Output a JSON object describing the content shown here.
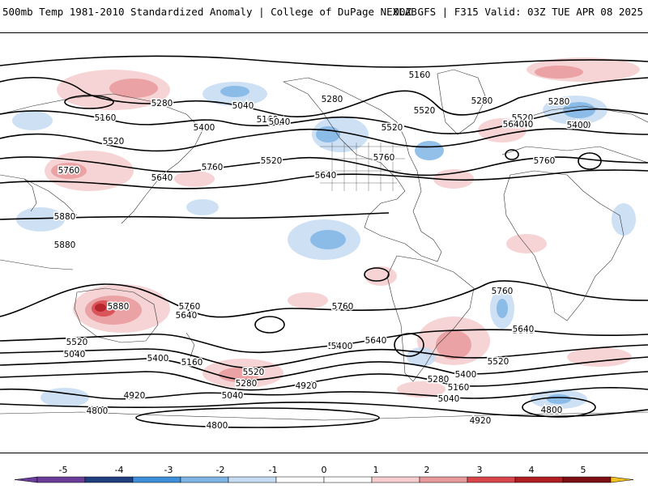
{
  "header": {
    "title_left": "500mb Temp 1981-2010 Standardized Anomaly | College of DuPage NEXLAB",
    "title_right": "00Z GFS | F315 Valid: 03Z TUE APR 08 2025"
  },
  "colors": {
    "neg5": "#6a3d9a",
    "neg4": "#1f3f7f",
    "neg3": "#3c8fd8",
    "neg2": "#7fb5e5",
    "neg1": "#c5dcf2",
    "zero": "#ffffff",
    "pos1": "#f5cdce",
    "pos2": "#e8999b",
    "pos3": "#d8464c",
    "pos4": "#b01e24",
    "pos5": "#7d0f14",
    "over": "#f0c020"
  },
  "colorbar": {
    "ticks": [
      "-5",
      "-4",
      "-3",
      "-2",
      "-1",
      "0",
      "1",
      "2",
      "3",
      "4",
      "5"
    ]
  },
  "contours": {
    "labels": [
      {
        "text": "5160"
      },
      {
        "text": "5160"
      },
      {
        "text": "5160"
      },
      {
        "text": "5160"
      },
      {
        "text": "5280"
      },
      {
        "text": "5280"
      },
      {
        "text": "5280"
      },
      {
        "text": "5280"
      },
      {
        "text": "5040"
      },
      {
        "text": "5040"
      },
      {
        "text": "5400"
      },
      {
        "text": "5400"
      },
      {
        "text": "5400"
      },
      {
        "text": "5400"
      },
      {
        "text": "5520"
      },
      {
        "text": "5520"
      },
      {
        "text": "5520"
      },
      {
        "text": "5520"
      },
      {
        "text": "5640"
      },
      {
        "text": "5640"
      },
      {
        "text": "5640"
      },
      {
        "text": "5640"
      },
      {
        "text": "5760"
      },
      {
        "text": "5760"
      },
      {
        "text": "5760"
      },
      {
        "text": "5760"
      },
      {
        "text": "5880"
      },
      {
        "text": "5880"
      },
      {
        "text": "5880"
      },
      {
        "text": "5760"
      },
      {
        "text": "5640"
      },
      {
        "text": "5760"
      },
      {
        "text": "5520"
      },
      {
        "text": "5040"
      },
      {
        "text": "5400"
      },
      {
        "text": "5160"
      },
      {
        "text": "5520"
      },
      {
        "text": "5280"
      },
      {
        "text": "5040"
      },
      {
        "text": "4920"
      },
      {
        "text": "4800"
      },
      {
        "text": "4800"
      },
      {
        "text": "4920"
      },
      {
        "text": "5640"
      },
      {
        "text": "5400"
      },
      {
        "text": "5520"
      },
      {
        "text": "5400"
      },
      {
        "text": "5280"
      },
      {
        "text": "5160"
      },
      {
        "text": "5040"
      },
      {
        "text": "4920"
      },
      {
        "text": "4800"
      },
      {
        "text": "5640"
      },
      {
        "text": "5760"
      },
      {
        "text": "5520"
      },
      {
        "text": "5640"
      },
      {
        "text": "5400"
      }
    ]
  }
}
